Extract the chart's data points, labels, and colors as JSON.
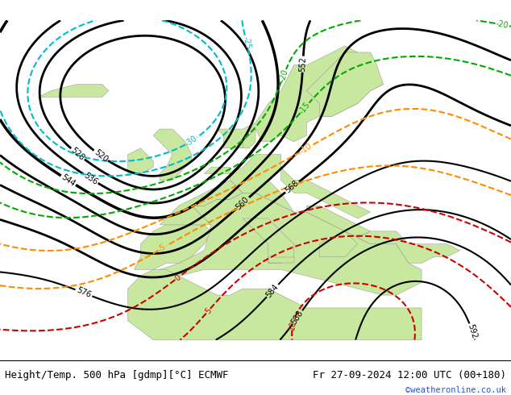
{
  "title_left": "Height/Temp. 500 hPa [gdmp][°C] ECMWF",
  "title_right": "Fr 27-09-2024 12:00 UTC (00+180)",
  "credit": "©weatheronline.co.uk",
  "bg_land_color": "#c8e8a0",
  "bg_sea_color": "#c8c8c8",
  "bg_ocean_color": "#c8c8c8",
  "contour_height_color": "#000000",
  "contour_temp_orange_color": "#ff8c00",
  "contour_temp_green_color": "#00aa00",
  "contour_temp_cyan_color": "#00bbcc",
  "contour_temp_red_color": "#cc0000",
  "fig_width": 6.34,
  "fig_height": 4.9,
  "dpi": 100,
  "bottom_bar_height": 0.088,
  "title_fontsize": 9.0,
  "credit_color": "#2255dd",
  "credit_fontsize": 7.5,
  "label_fontsize": 7
}
